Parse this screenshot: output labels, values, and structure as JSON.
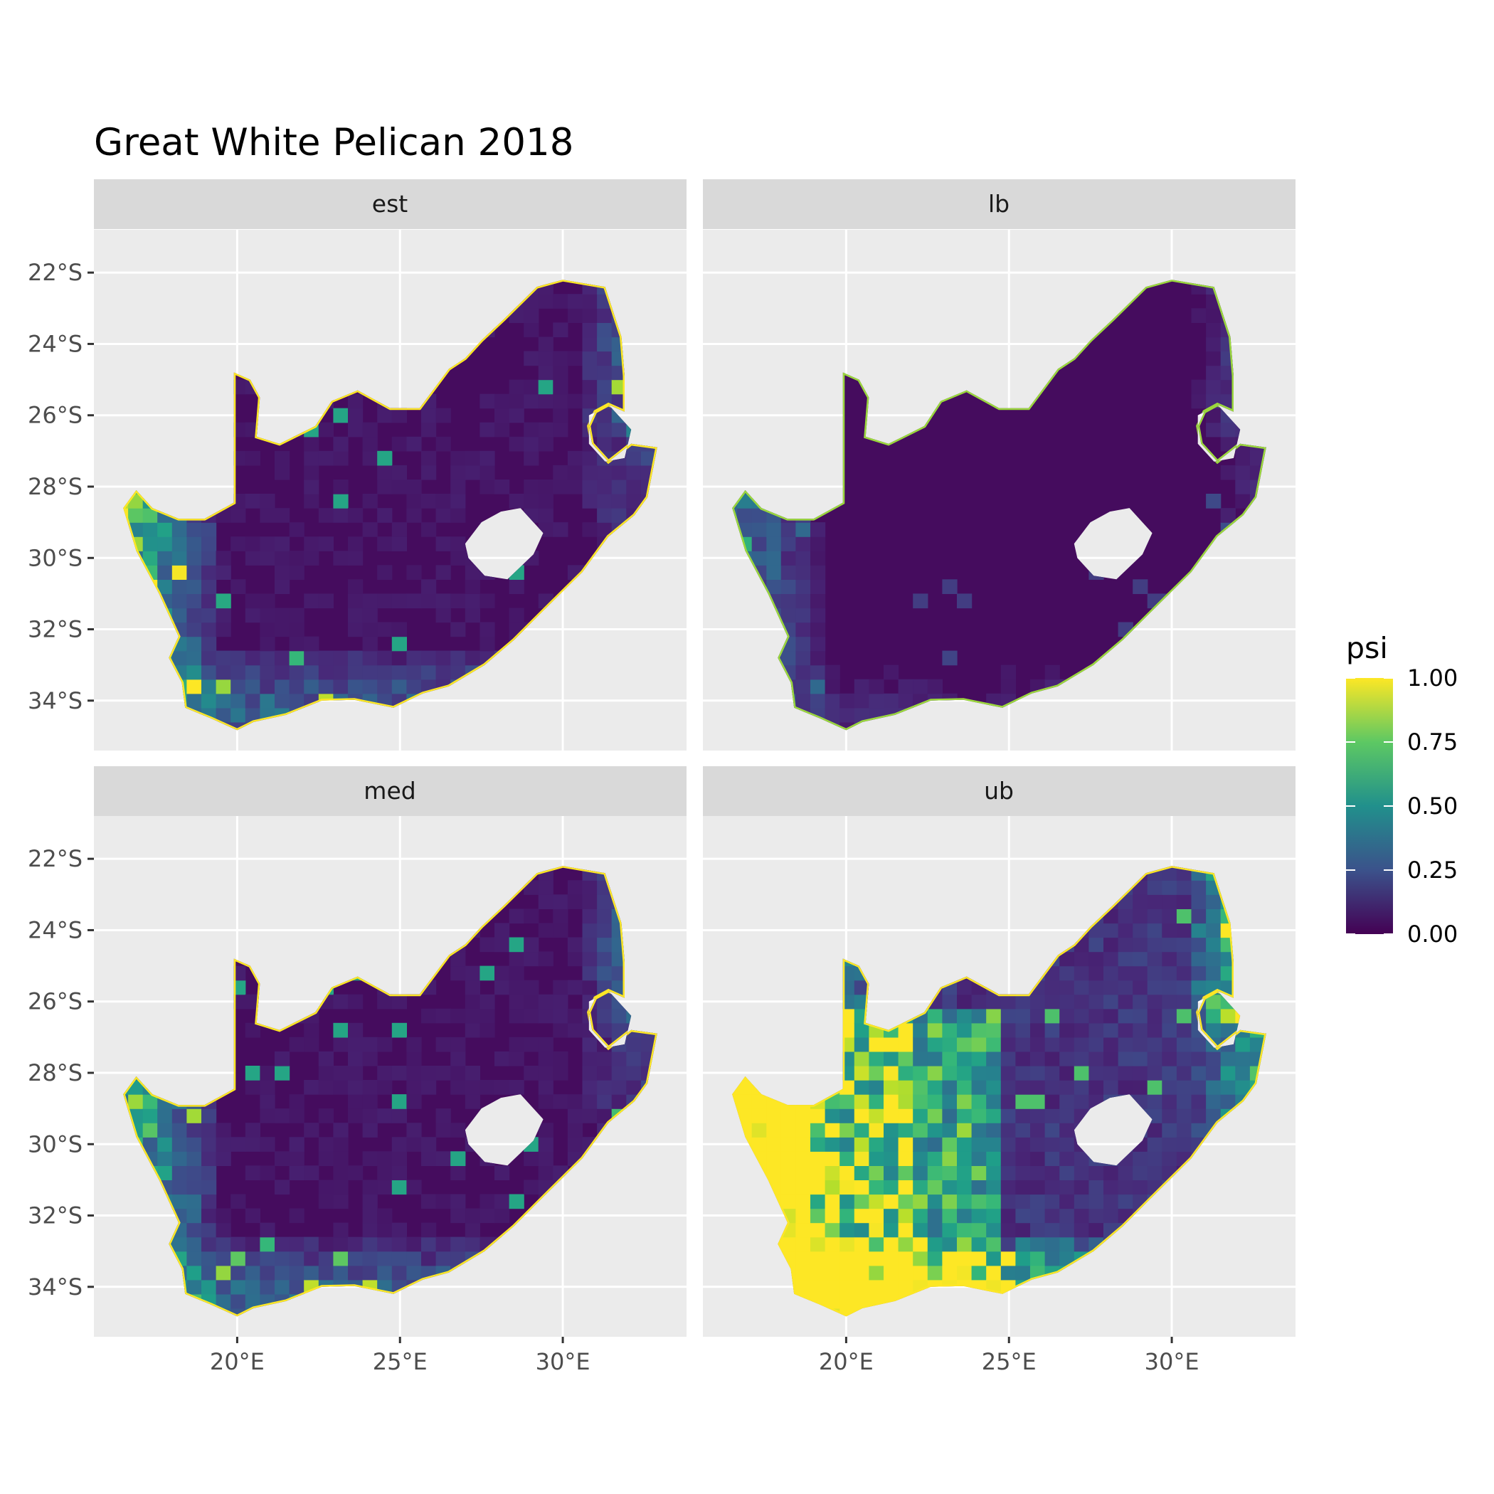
{
  "title": "Great White Pelican 2018",
  "facets": [
    {
      "label": "est",
      "intensity": "est"
    },
    {
      "label": "lb",
      "intensity": "lb"
    },
    {
      "label": "med",
      "intensity": "med"
    },
    {
      "label": "ub",
      "intensity": "ub"
    }
  ],
  "x_axis": {
    "ticks": [
      20,
      25,
      30
    ],
    "tick_labels": [
      "20°E",
      "25°E",
      "30°E"
    ],
    "range": [
      15.6,
      33.8
    ]
  },
  "y_axis": {
    "ticks": [
      -22,
      -24,
      -26,
      -28,
      -30,
      -32,
      -34
    ],
    "tick_labels": [
      "22°S",
      "24°S",
      "26°S",
      "28°S",
      "30°S",
      "32°S",
      "34°S"
    ],
    "range": [
      -35.4,
      -20.8
    ]
  },
  "legend": {
    "title": "psi",
    "range": [
      0,
      1
    ],
    "breaks": [
      0,
      0.25,
      0.5,
      0.75,
      1
    ],
    "break_labels": [
      "0.00",
      "0.25",
      "0.50",
      "0.75",
      "1.00"
    ],
    "palette": "viridis",
    "colors": [
      "#440154",
      "#3b528b",
      "#21908c",
      "#5dc863",
      "#fde725"
    ]
  },
  "colors": {
    "panel_background": "#ebebeb",
    "strip_background": "#d9d9d9",
    "grid": "#ffffff"
  }
}
